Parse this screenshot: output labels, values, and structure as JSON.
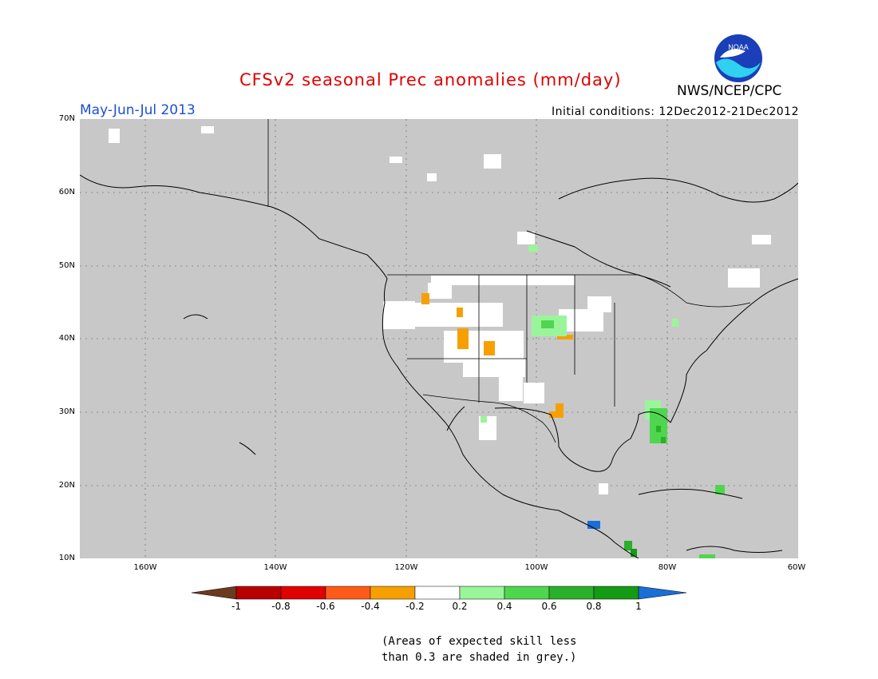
{
  "header": {
    "title": "CFSv2 seasonal Prec anomalies (mm/day)",
    "period": "May-Jun-Jul 2013",
    "initial_conditions": "Initial conditions: 12Dec2012-21Dec2012",
    "agency": "NWS/NCEP/CPC",
    "logo_text": "NOAA"
  },
  "map": {
    "region": "North America",
    "lat_labels": [
      "70N",
      "60N",
      "50N",
      "40N",
      "30N",
      "20N",
      "10N"
    ],
    "lon_labels": [
      "160W",
      "140W",
      "120W",
      "100W",
      "80W",
      "60W"
    ],
    "background_color": "#c8c8c8",
    "grid": true
  },
  "colorbar": {
    "labels": [
      "-1",
      "-0.8",
      "-0.6",
      "-0.4",
      "-0.2",
      "0.2",
      "0.4",
      "0.6",
      "0.8",
      "1"
    ],
    "colors": [
      "#6b3a1f",
      "#b80000",
      "#e00000",
      "#ff5a1a",
      "#f5a000",
      "#ffffff",
      "#9af59a",
      "#4fd64f",
      "#2ab02a",
      "#159a15",
      "#1a6fd6"
    ]
  },
  "note": {
    "line1": "(Areas of expected skill less",
    "line2": "than 0.3 are shaded in grey.)"
  }
}
